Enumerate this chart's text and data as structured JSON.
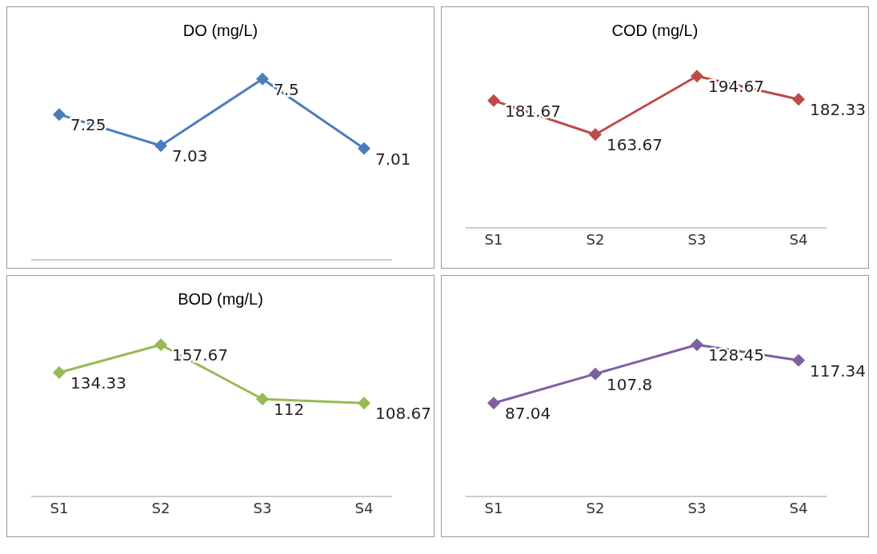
{
  "chart_data": [
    {
      "type": "line",
      "title": "DO (mg/L)",
      "categories": [
        null,
        null,
        null,
        null
      ],
      "series": [
        {
          "color": "#4a7ebb",
          "values": [
            7.25,
            7.03,
            7.5,
            7.01
          ]
        }
      ],
      "marker": "diamond",
      "data_labels": true
    },
    {
      "type": "line",
      "title": "COD (mg/L)",
      "categories": [
        "S1",
        "S2",
        "S3",
        "S4"
      ],
      "series": [
        {
          "color": "#be4b48",
          "values": [
            181.67,
            163.67,
            194.67,
            182.33
          ]
        }
      ],
      "marker": "diamond",
      "data_labels": true
    },
    {
      "type": "line",
      "title": "BOD (mg/L)",
      "categories": [
        "S1",
        "S2",
        "S3",
        "S4"
      ],
      "series": [
        {
          "color": "#98b954",
          "values": [
            134.33,
            157.67,
            112,
            108.67
          ]
        }
      ],
      "marker": "diamond",
      "data_labels": true
    },
    {
      "type": "line",
      "categories": [
        "S1",
        "S2",
        "S3",
        "S4"
      ],
      "series": [
        {
          "color": "#7d60a0",
          "values": [
            87.04,
            107.8,
            128.45,
            117.34
          ]
        }
      ],
      "marker": "diamond",
      "data_labels": true
    }
  ]
}
